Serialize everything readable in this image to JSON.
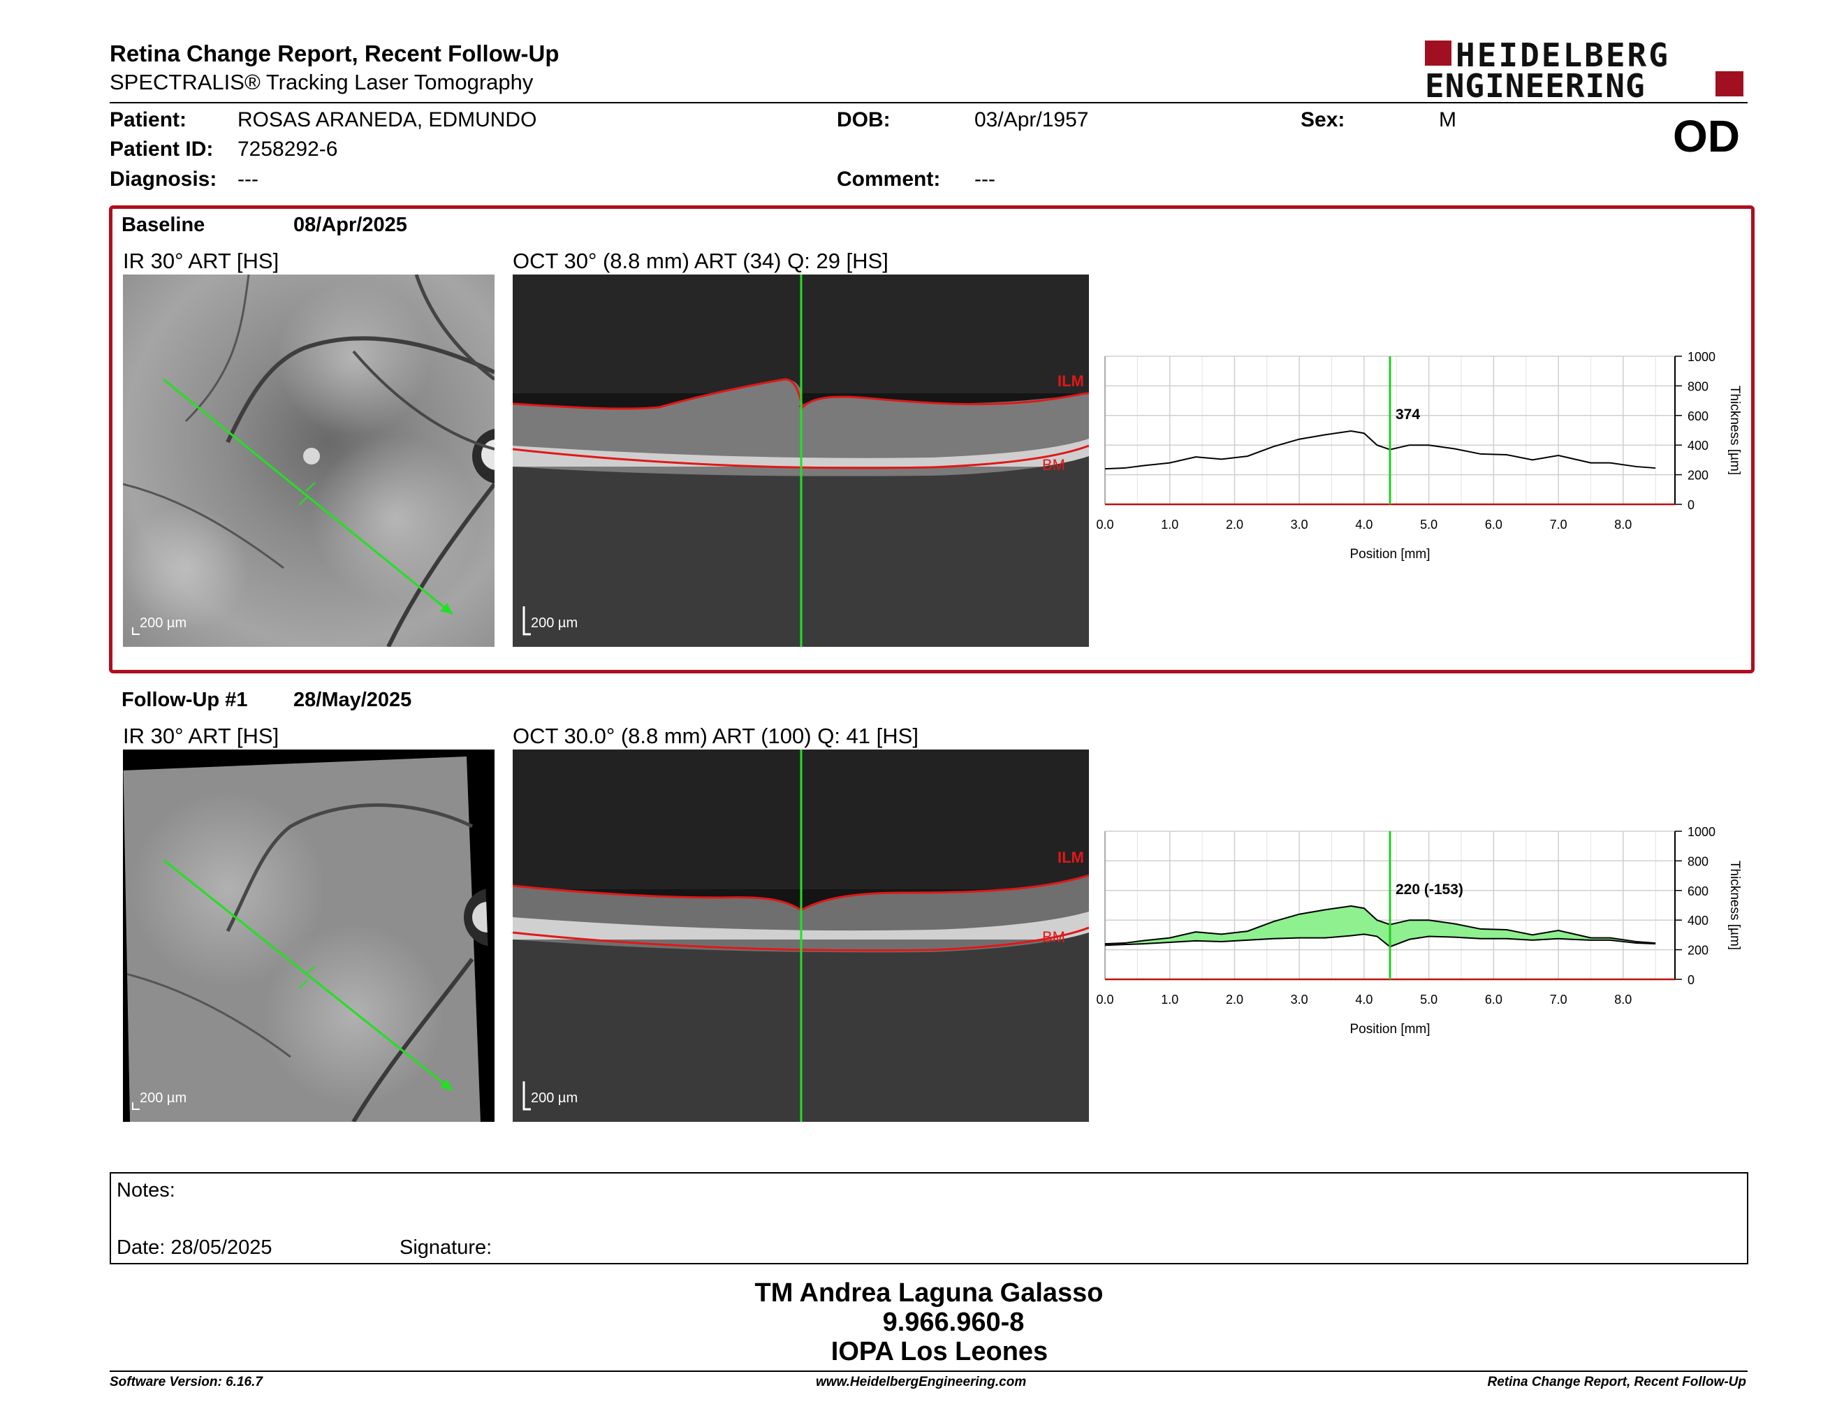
{
  "header": {
    "title": "Retina Change Report, Recent Follow-Up",
    "subtitle": "SPECTRALIS® Tracking Laser Tomography",
    "logo_line1": "HEIDELBERG",
    "logo_line2": "ENGINEERING",
    "eye": "OD"
  },
  "patient": {
    "patient_label": "Patient:",
    "patient_value": "ROSAS ARANEDA, EDMUNDO",
    "id_label": "Patient ID:",
    "id_value": "7258292-6",
    "diagnosis_label": "Diagnosis:",
    "diagnosis_value": "---",
    "dob_label": "DOB:",
    "dob_value": "03/Apr/1957",
    "comment_label": "Comment:",
    "comment_value": "---",
    "sex_label": "Sex:",
    "sex_value": "M"
  },
  "baseline": {
    "label": "Baseline",
    "date": "08/Apr/2025",
    "ir_label": "IR 30° ART [HS]",
    "oct_label": "OCT 30° (8.8 mm) ART (34) Q: 29 [HS]",
    "scale": "200 µm",
    "ilm": "ILM",
    "bm": "BM"
  },
  "followup": {
    "label": "Follow-Up #1",
    "date": "28/May/2025",
    "ir_label": "IR 30° ART [HS]",
    "oct_label": "OCT 30.0° (8.8 mm) ART (100) Q: 41 [HS]",
    "scale": "200 µm",
    "ilm": "ILM",
    "bm": "BM"
  },
  "chart_data": [
    {
      "type": "line",
      "xlabel": "Position [mm]",
      "ylabel": "Thickness [µm]",
      "xlim": [
        0,
        8.8
      ],
      "ylim": [
        0,
        1000
      ],
      "xticks": [
        "0.0",
        "1.0",
        "2.0",
        "3.0",
        "4.0",
        "5.0",
        "6.0",
        "7.0",
        "8.0"
      ],
      "yticks": [
        "0",
        "200",
        "400",
        "600",
        "800",
        "1000"
      ],
      "cursor_x": 4.4,
      "cursor_label": "374",
      "series": [
        {
          "x": [
            0,
            0.3,
            0.6,
            1.0,
            1.4,
            1.8,
            2.2,
            2.6,
            3.0,
            3.4,
            3.8,
            4.0,
            4.2,
            4.4,
            4.7,
            5.0,
            5.4,
            5.8,
            6.2,
            6.6,
            7.0,
            7.2,
            7.5,
            7.8,
            8.2,
            8.5
          ],
          "y": [
            240,
            245,
            262,
            280,
            320,
            305,
            325,
            390,
            440,
            470,
            495,
            480,
            400,
            370,
            400,
            400,
            375,
            340,
            335,
            300,
            330,
            310,
            280,
            280,
            255,
            245
          ]
        }
      ],
      "colors": {
        "line": "#000000",
        "cursor": "#22cc22",
        "grid": "#cfcfcf"
      }
    },
    {
      "type": "area",
      "xlabel": "Position [mm]",
      "ylabel": "Thickness [µm]",
      "xlim": [
        0,
        8.8
      ],
      "ylim": [
        0,
        1000
      ],
      "xticks": [
        "0.0",
        "1.0",
        "2.0",
        "3.0",
        "4.0",
        "5.0",
        "6.0",
        "7.0",
        "8.0"
      ],
      "yticks": [
        "0",
        "200",
        "400",
        "600",
        "800",
        "1000"
      ],
      "cursor_x": 4.4,
      "cursor_label": "220 (-153)",
      "series": [
        {
          "x": [
            0,
            0.3,
            0.6,
            1.0,
            1.4,
            1.8,
            2.2,
            2.6,
            3.0,
            3.4,
            3.8,
            4.0,
            4.2,
            4.4,
            4.7,
            5.0,
            5.4,
            5.8,
            6.2,
            6.6,
            7.0,
            7.2,
            7.5,
            7.8,
            8.2,
            8.5
          ],
          "y": [
            240,
            245,
            262,
            280,
            320,
            305,
            325,
            390,
            440,
            470,
            495,
            480,
            400,
            370,
            400,
            400,
            375,
            340,
            335,
            300,
            330,
            310,
            280,
            280,
            255,
            245
          ]
        },
        {
          "x": [
            0,
            0.3,
            0.6,
            1.0,
            1.4,
            1.8,
            2.2,
            2.6,
            3.0,
            3.4,
            3.8,
            4.0,
            4.2,
            4.4,
            4.7,
            5.0,
            5.4,
            5.8,
            6.2,
            6.6,
            7.0,
            7.2,
            7.5,
            7.8,
            8.2,
            8.5
          ],
          "y": [
            230,
            235,
            240,
            250,
            260,
            255,
            265,
            275,
            280,
            280,
            295,
            305,
            290,
            220,
            270,
            290,
            285,
            275,
            275,
            265,
            275,
            270,
            265,
            265,
            245,
            240
          ]
        }
      ],
      "colors": {
        "line": "#000000",
        "fill": "#8ef08e",
        "cursor": "#22cc22",
        "grid": "#cfcfcf"
      }
    }
  ],
  "notes": {
    "notes_label": "Notes:",
    "date_label": "Date: 28/05/2025",
    "signature_label": "Signature:"
  },
  "signatory": {
    "name": "TM Andrea Laguna Galasso",
    "id": "9.966.960-8",
    "institution": "IOPA Los Leones"
  },
  "footer": {
    "version": "Software Version: 6.16.7",
    "website": "www.HeidelbergEngineering.com",
    "report": "Retina Change Report, Recent Follow-Up"
  }
}
